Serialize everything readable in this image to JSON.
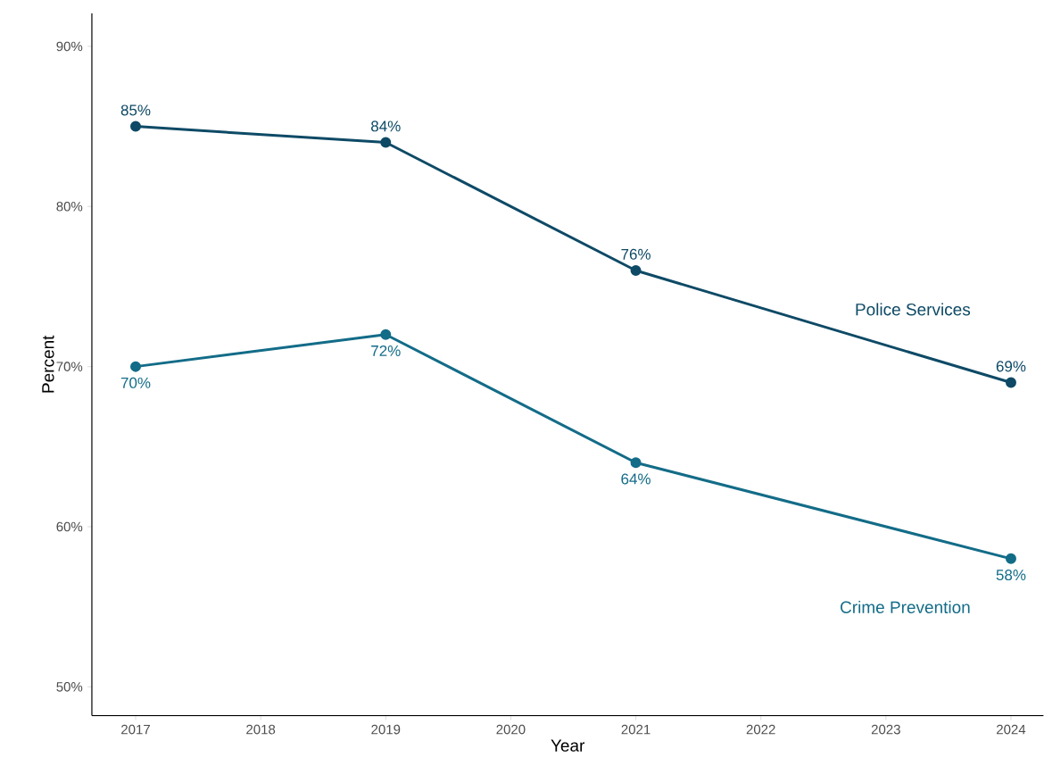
{
  "chart_data": {
    "type": "line",
    "xlabel": "Year",
    "ylabel": "Percent",
    "xlim": [
      2016.65,
      2024.26
    ],
    "ylim": [
      48.2,
      92.06
    ],
    "xticks": [
      2017,
      2018,
      2019,
      2020,
      2021,
      2022,
      2023,
      2024
    ],
    "yticks": [
      {
        "value": 50,
        "label": "50%"
      },
      {
        "value": 60,
        "label": "60%"
      },
      {
        "value": 70,
        "label": "70%"
      },
      {
        "value": 80,
        "label": "80%"
      },
      {
        "value": 90,
        "label": "90%"
      }
    ],
    "x": [
      2017,
      2019,
      2021,
      2024
    ],
    "series": [
      {
        "name": "Police Services",
        "color": "#0e4a66",
        "values": [
          85,
          84,
          76,
          69
        ],
        "value_labels": [
          "85%",
          "84%",
          "76%",
          "69%"
        ]
      },
      {
        "name": "Crime Prevention",
        "color": "#136c88",
        "values": [
          70,
          72,
          64,
          58
        ],
        "value_labels": [
          "70%",
          "72%",
          "64%",
          "58%"
        ]
      }
    ],
    "marker": "circle",
    "line_style": "solid",
    "grid": false
  }
}
